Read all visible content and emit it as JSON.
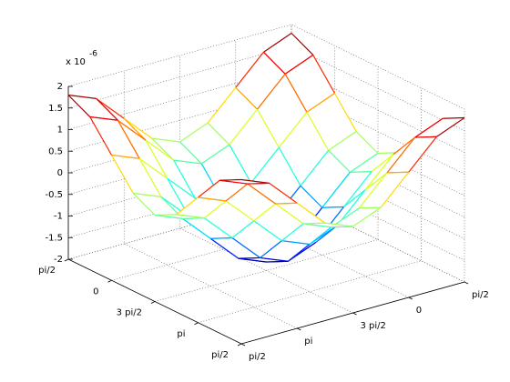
{
  "chart_data": {
    "type": "mesh",
    "colormap": "jet",
    "grid": true,
    "zlabel_multiplier": "x 10",
    "zlabel_exponent": "-6",
    "x": [
      0,
      0.5,
      1,
      1.5,
      2,
      2.5,
      3,
      3.5,
      4
    ],
    "y": [
      0,
      0.5,
      1,
      1.5,
      2,
      2.5,
      3,
      3.5,
      4
    ],
    "z": [
      [
        1.8,
        1.54,
        0.9,
        0.26,
        0,
        0.26,
        0.9,
        1.54,
        1.8
      ],
      [
        1.54,
        1.28,
        0.64,
        0,
        -0.26,
        0,
        0.64,
        1.28,
        1.54
      ],
      [
        0.9,
        0.64,
        0,
        -0.64,
        -0.9,
        -0.64,
        0,
        0.64,
        0.9
      ],
      [
        0.26,
        0,
        -0.64,
        -1.28,
        -1.54,
        -1.28,
        -0.64,
        0,
        0.26
      ],
      [
        0,
        -0.26,
        -0.9,
        -1.54,
        -1.8,
        -1.54,
        -0.9,
        -0.26,
        0
      ],
      [
        0.26,
        0,
        -0.64,
        -1.28,
        -1.54,
        -1.28,
        -0.64,
        0,
        0.26
      ],
      [
        0.9,
        0.64,
        0,
        -0.64,
        -0.9,
        -0.64,
        0,
        0.64,
        0.9
      ],
      [
        1.54,
        1.28,
        0.64,
        0,
        -0.26,
        0,
        0.64,
        1.28,
        1.54
      ],
      [
        1.8,
        1.54,
        0.9,
        0.26,
        0,
        0.26,
        0.9,
        1.54,
        1.8
      ]
    ],
    "xlim": [
      0,
      4
    ],
    "ylim": [
      0,
      4
    ],
    "zlim": [
      -2,
      2
    ],
    "xticks": [
      {
        "value": 0,
        "label": "pi/2"
      },
      {
        "value": 1,
        "label": "0"
      },
      {
        "value": 2,
        "label": "3 pi/2"
      },
      {
        "value": 3,
        "label": "pi"
      },
      {
        "value": 4,
        "label": "pi/2"
      }
    ],
    "yticks": [
      {
        "value": 0,
        "label": "pi/2"
      },
      {
        "value": 1,
        "label": "pi"
      },
      {
        "value": 2,
        "label": "3 pi/2"
      },
      {
        "value": 3,
        "label": "0"
      },
      {
        "value": 4,
        "label": "pi/2"
      }
    ],
    "zticks": [
      -2,
      -1.5,
      -1,
      -0.5,
      0,
      0.5,
      1,
      1.5,
      2
    ]
  }
}
